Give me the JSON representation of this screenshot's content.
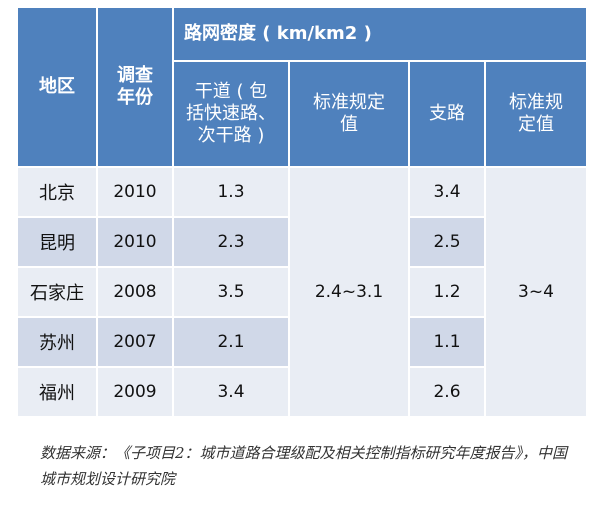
{
  "table": {
    "headers": {
      "region": "地区",
      "year": "调查\n年份",
      "group": "路网密度 ( km/km2 )",
      "trunk": "干道 ( 包\n括快速路、\n次干路 )",
      "standard1": "标准规定\n值",
      "branch": "支路",
      "standard2": "标准规\n定值"
    },
    "rows": [
      {
        "region": "北京",
        "year": "2010",
        "trunk": "1.3",
        "branch": "3.4"
      },
      {
        "region": "昆明",
        "year": "2010",
        "trunk": "2.3",
        "branch": "2.5"
      },
      {
        "region": "石家庄",
        "year": "2008",
        "trunk": "3.5",
        "branch": "1.2"
      },
      {
        "region": "苏州",
        "year": "2007",
        "trunk": "2.1",
        "branch": "1.1"
      },
      {
        "region": "福州",
        "year": "2009",
        "trunk": "3.4",
        "branch": "2.6"
      }
    ],
    "standard1_value": "2.4~3.1",
    "standard2_value": "3~4"
  },
  "source": "数据来源：《子项目2：城市道路合理级配及相关控制指标研究年度报告》，中国城市规划设计研究院"
}
